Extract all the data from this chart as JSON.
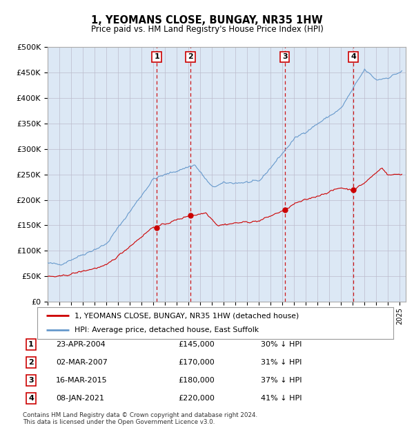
{
  "title": "1, YEOMANS CLOSE, BUNGAY, NR35 1HW",
  "subtitle": "Price paid vs. HM Land Registry's House Price Index (HPI)",
  "legend_line1": "1, YEOMANS CLOSE, BUNGAY, NR35 1HW (detached house)",
  "legend_line2": "HPI: Average price, detached house, East Suffolk",
  "footer1": "Contains HM Land Registry data © Crown copyright and database right 2024.",
  "footer2": "This data is licensed under the Open Government Licence v3.0.",
  "transactions": [
    {
      "num": 1,
      "date": "23-APR-2004",
      "price": 145000,
      "hpi_pct": "30% ↓ HPI",
      "x_year": 2004.29
    },
    {
      "num": 2,
      "date": "02-MAR-2007",
      "price": 170000,
      "hpi_pct": "31% ↓ HPI",
      "x_year": 2007.17
    },
    {
      "num": 3,
      "date": "16-MAR-2015",
      "price": 180000,
      "hpi_pct": "37% ↓ HPI",
      "x_year": 2015.21
    },
    {
      "num": 4,
      "date": "08-JAN-2021",
      "price": 220000,
      "hpi_pct": "41% ↓ HPI",
      "x_year": 2021.04
    }
  ],
  "hpi_color": "#6699cc",
  "price_color": "#cc0000",
  "vline_color": "#cc0000",
  "background_color": "#ffffff",
  "plot_bg_color": "#dce8f5",
  "grid_color": "#bbbbcc",
  "ylim": [
    0,
    500000
  ],
  "xlim_start": 1995.0,
  "xlim_end": 2025.5,
  "yticks": [
    0,
    50000,
    100000,
    150000,
    200000,
    250000,
    300000,
    350000,
    400000,
    450000,
    500000
  ],
  "ytick_labels": [
    "£0",
    "£50K",
    "£100K",
    "£150K",
    "£200K",
    "£250K",
    "£300K",
    "£350K",
    "£400K",
    "£450K",
    "£500K"
  ]
}
